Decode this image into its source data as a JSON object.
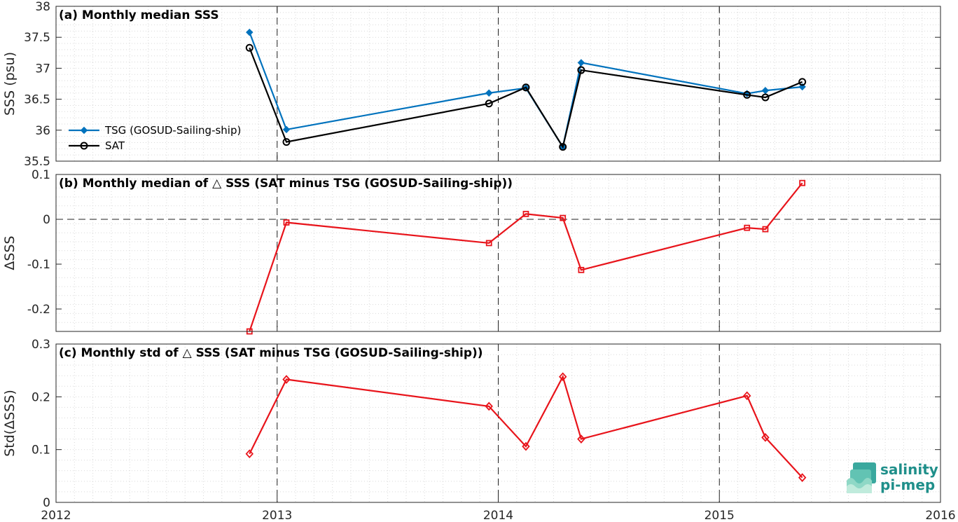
{
  "colors": {
    "tsg": "#0072BD",
    "sat": "#000000",
    "delta": "#E8141B",
    "grid": "#d9d9d9",
    "logo": "#1f8f8a"
  },
  "x_axis": {
    "range": [
      2012,
      2016
    ],
    "ticks": [
      2012,
      2013,
      2014,
      2015,
      2016
    ],
    "tick_labels": [
      "2012",
      "2013",
      "2014",
      "2015",
      "2016"
    ],
    "year_lines": [
      2013,
      2014,
      2015
    ]
  },
  "logo": {
    "line1": "salinity",
    "line2": "pi-mep",
    "icon": "salinity-pi-mep-logo"
  },
  "chart_data": [
    {
      "type": "line",
      "title": "(a) Monthly median SSS",
      "ylabel": "SSS (psu)",
      "ylim": [
        35.5,
        38
      ],
      "yticks": [
        35.5,
        36,
        36.5,
        37,
        37.5,
        38
      ],
      "ytick_labels": [
        "35.5",
        "36",
        "36.5",
        "37",
        "37.5",
        "38"
      ],
      "grid": true,
      "legend": "left",
      "series": [
        {
          "name": "TSG (GOSUD-Sailing-ship)",
          "marker": "filled-diamond",
          "x": [
            2012.875,
            2013.042,
            2013.958,
            2014.125,
            2014.292,
            2014.375,
            2015.125,
            2015.208,
            2015.375
          ],
          "values": [
            37.58,
            36.01,
            36.6,
            36.68,
            35.73,
            37.09,
            36.59,
            36.64,
            36.7
          ]
        },
        {
          "name": "SAT",
          "marker": "open-circle",
          "x": [
            2012.875,
            2013.042,
            2013.958,
            2014.125,
            2014.292,
            2014.375,
            2015.125,
            2015.208,
            2015.375
          ],
          "values": [
            37.33,
            35.81,
            36.43,
            36.69,
            35.73,
            36.97,
            36.57,
            36.53,
            36.78
          ]
        }
      ]
    },
    {
      "type": "line",
      "title": "(b) Monthly median of △ SSS (SAT minus TSG (GOSUD-Sailing-ship))",
      "ylabel": "ΔSSS",
      "ylim": [
        -0.25,
        0.1
      ],
      "yticks": [
        -0.2,
        -0.1,
        0,
        0.1
      ],
      "ytick_labels": [
        "-0.2",
        "-0.1",
        "0",
        "0.1"
      ],
      "grid": true,
      "zero_line": true,
      "series": [
        {
          "marker": "open-square",
          "x": [
            2012.875,
            2013.042,
            2013.958,
            2014.125,
            2014.292,
            2014.375,
            2015.125,
            2015.208,
            2015.375
          ],
          "values": [
            -0.25,
            -0.007,
            -0.053,
            0.012,
            0.003,
            -0.113,
            -0.019,
            -0.022,
            0.081
          ]
        }
      ]
    },
    {
      "type": "line",
      "title": "(c) Monthly std of △ SSS (SAT minus TSG (GOSUD-Sailing-ship))",
      "ylabel": "Std(ΔSSS)",
      "ylim": [
        0,
        0.3
      ],
      "yticks": [
        0,
        0.1,
        0.2,
        0.3
      ],
      "ytick_labels": [
        "0",
        "0.1",
        "0.2",
        "0.3"
      ],
      "grid": true,
      "series": [
        {
          "marker": "open-diamond",
          "x": [
            2012.875,
            2013.042,
            2013.958,
            2014.125,
            2014.292,
            2014.375,
            2015.125,
            2015.208,
            2015.375
          ],
          "values": [
            0.092,
            0.233,
            0.182,
            0.106,
            0.238,
            0.12,
            0.202,
            0.123,
            0.047
          ]
        }
      ]
    }
  ]
}
